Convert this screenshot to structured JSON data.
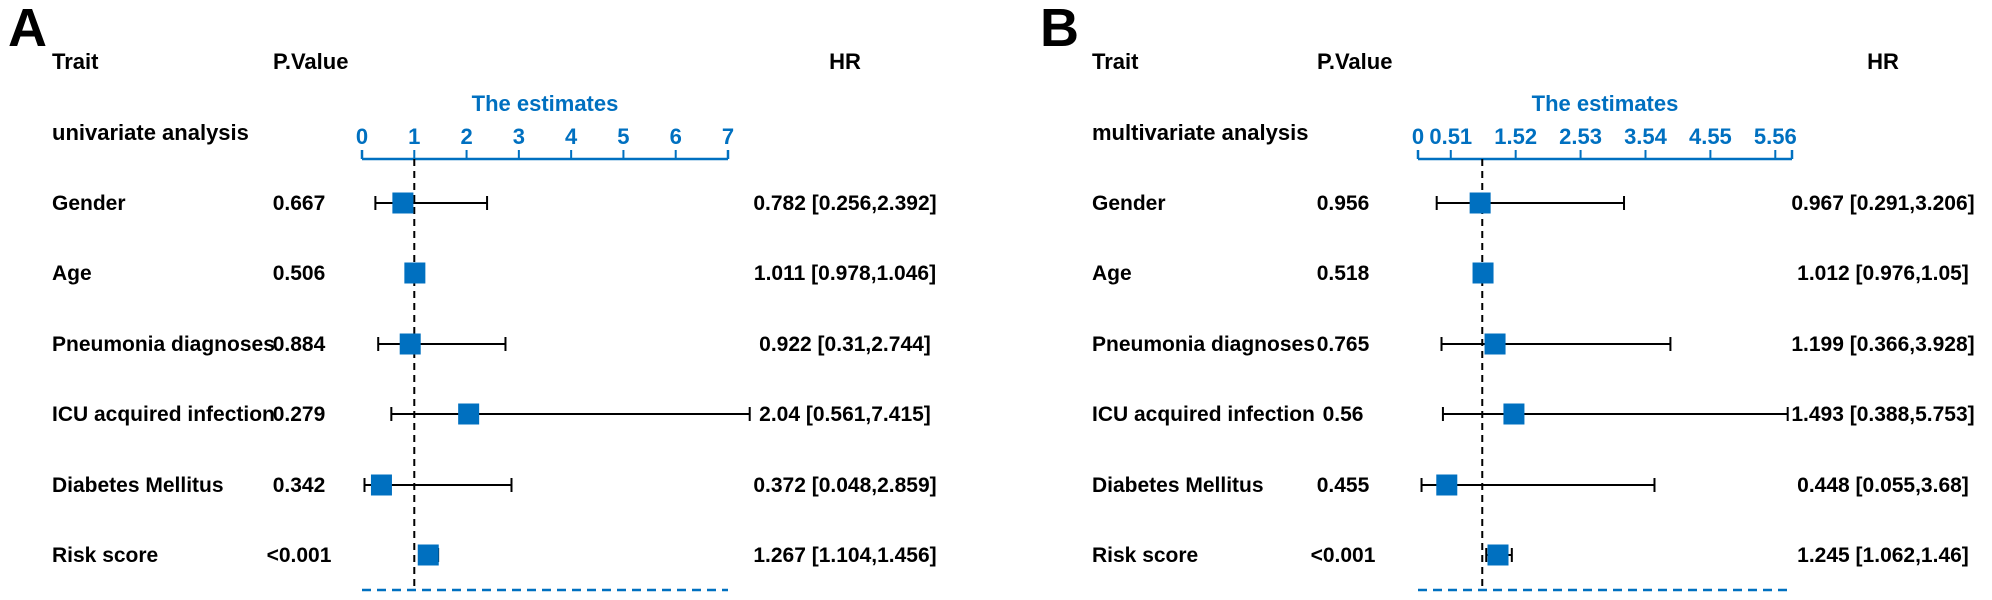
{
  "accent_color": "#0070C0",
  "chart_data": [
    {
      "type": "forest",
      "panel_label": "A",
      "headers": {
        "trait": "Trait",
        "pvalue": "P.Value",
        "hr": "HR"
      },
      "group_label": "univariate analysis",
      "axis_title": "The estimates",
      "ticks": [
        "0",
        "1",
        "2",
        "3",
        "4",
        "5",
        "6",
        "7"
      ],
      "xlim": [
        0,
        7
      ],
      "reference_line": 1,
      "rows": [
        {
          "trait": "Gender",
          "pvalue": "0.667",
          "hr": 0.782,
          "lower": 0.256,
          "upper": 2.392,
          "hr_text": "0.782 [0.256,2.392]"
        },
        {
          "trait": "Age",
          "pvalue": "0.506",
          "hr": 1.011,
          "lower": 0.978,
          "upper": 1.046,
          "hr_text": "1.011 [0.978,1.046]"
        },
        {
          "trait": "Pneumonia diagnoses",
          "pvalue": "0.884",
          "hr": 0.922,
          "lower": 0.31,
          "upper": 2.744,
          "hr_text": "0.922 [0.31,2.744]"
        },
        {
          "trait": "ICU acquired infection",
          "pvalue": "0.279",
          "hr": 2.04,
          "lower": 0.561,
          "upper": 7.415,
          "hr_text": "2.04 [0.561,7.415]"
        },
        {
          "trait": "Diabetes Mellitus",
          "pvalue": "0.342",
          "hr": 0.372,
          "lower": 0.048,
          "upper": 2.859,
          "hr_text": "0.372 [0.048,2.859]"
        },
        {
          "trait": "Risk score",
          "pvalue": "<0.001",
          "hr": 1.267,
          "lower": 1.104,
          "upper": 1.456,
          "hr_text": "1.267 [1.104,1.456]"
        }
      ]
    },
    {
      "type": "forest",
      "panel_label": "B",
      "headers": {
        "trait": "Trait",
        "pvalue": "P.Value",
        "hr": "HR"
      },
      "group_label": "multivariate analysis",
      "axis_title": "The estimates",
      "ticks": [
        "0",
        "0.51",
        "1.52",
        "2.53",
        "3.54",
        "4.55",
        "5.56"
      ],
      "xlim": [
        0,
        5.82
      ],
      "reference_line": 1,
      "rows": [
        {
          "trait": "Gender",
          "pvalue": "0.956",
          "hr": 0.967,
          "lower": 0.291,
          "upper": 3.206,
          "hr_text": "0.967 [0.291,3.206]"
        },
        {
          "trait": "Age",
          "pvalue": "0.518",
          "hr": 1.012,
          "lower": 0.976,
          "upper": 1.05,
          "hr_text": "1.012 [0.976,1.05]"
        },
        {
          "trait": "Pneumonia diagnoses",
          "pvalue": "0.765",
          "hr": 1.199,
          "lower": 0.366,
          "upper": 3.928,
          "hr_text": "1.199 [0.366,3.928]"
        },
        {
          "trait": "ICU acquired infection",
          "pvalue": "0.56",
          "hr": 1.493,
          "lower": 0.388,
          "upper": 5.753,
          "hr_text": "1.493 [0.388,5.753]"
        },
        {
          "trait": "Diabetes Mellitus",
          "pvalue": "0.455",
          "hr": 0.448,
          "lower": 0.055,
          "upper": 3.68,
          "hr_text": "0.448 [0.055,3.68]"
        },
        {
          "trait": "Risk score",
          "pvalue": "<0.001",
          "hr": 1.245,
          "lower": 1.062,
          "upper": 1.46,
          "hr_text": "1.245 [1.062,1.46]"
        }
      ]
    }
  ]
}
